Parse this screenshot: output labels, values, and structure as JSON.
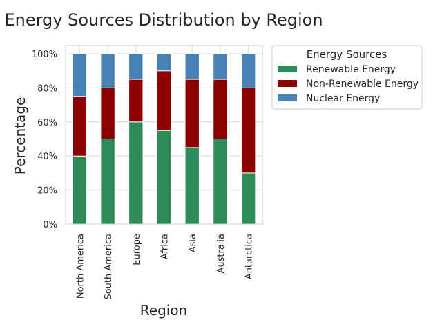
{
  "chart_data": {
    "type": "bar",
    "stacked": true,
    "title": "Energy Sources Distribution by Region",
    "xlabel": "Region",
    "ylabel": "Percentage",
    "categories": [
      "North America",
      "South America",
      "Europe",
      "Africa",
      "Asia",
      "Australia",
      "Antarctica"
    ],
    "series": [
      {
        "name": "Renewable Energy",
        "color": "#2e8b57",
        "values": [
          40,
          50,
          60,
          55,
          45,
          50,
          30
        ]
      },
      {
        "name": "Non-Renewable Energy",
        "color": "#8b0000",
        "values": [
          35,
          30,
          25,
          35,
          40,
          35,
          50
        ]
      },
      {
        "name": "Nuclear Energy",
        "color": "#4682b4",
        "values": [
          25,
          20,
          15,
          10,
          15,
          15,
          20
        ]
      }
    ],
    "ylim": [
      0,
      100
    ],
    "yticks": [
      0,
      20,
      40,
      60,
      80,
      100
    ],
    "ytick_labels": [
      "0%",
      "20%",
      "40%",
      "60%",
      "80%",
      "100%"
    ],
    "grid": true,
    "legend": {
      "title": "Energy Sources",
      "placement": "outside upper right"
    }
  }
}
